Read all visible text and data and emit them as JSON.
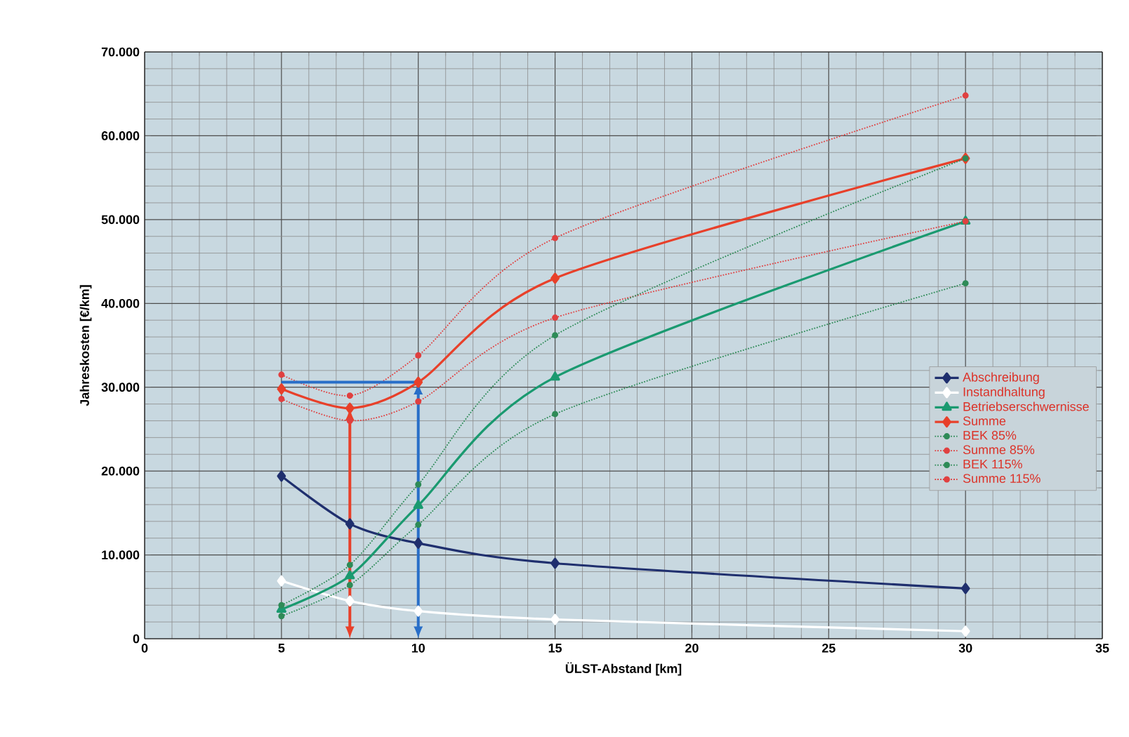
{
  "chart_data": {
    "type": "line",
    "xlabel": "ÜLST-Abstand [km]",
    "ylabel": "Jahreskosten [€/km]",
    "x": [
      5,
      7.5,
      10,
      15,
      30
    ],
    "series": [
      {
        "name": "Abschreibung",
        "color": "#1f2f6e",
        "values": [
          19400,
          13700,
          11400,
          9000,
          6000
        ],
        "marker": "diamond",
        "line_style": "solid"
      },
      {
        "name": "Instandhaltung",
        "color": "#ffffff",
        "values": [
          6900,
          4500,
          3300,
          2300,
          900
        ],
        "marker": "diamond",
        "line_style": "solid"
      },
      {
        "name": "Betriebserschwernisse",
        "color": "#1a9a70",
        "values": [
          3500,
          7500,
          15900,
          31200,
          49800
        ],
        "marker": "triangle",
        "line_style": "solid"
      },
      {
        "name": "Summe",
        "color": "#e8402a",
        "values": [
          29800,
          27500,
          30600,
          43000,
          57300
        ],
        "marker": "diamond",
        "line_style": "solid"
      },
      {
        "name": "BEK 85%",
        "color": "#2e8b57",
        "values": [
          2700,
          6400,
          13600,
          26800,
          42400
        ],
        "marker": "circle",
        "line_style": "dotted"
      },
      {
        "name": "Summe 85%",
        "color": "#e04040",
        "values": [
          28600,
          26000,
          28300,
          38300,
          49800
        ],
        "marker": "circle",
        "line_style": "dotted"
      },
      {
        "name": "BEK 115%",
        "color": "#2e8b57",
        "values": [
          4000,
          8800,
          18400,
          36200,
          57300
        ],
        "marker": "circle",
        "line_style": "dotted"
      },
      {
        "name": "Summe 115%",
        "color": "#e04040",
        "values": [
          31500,
          29000,
          33800,
          47800,
          64800
        ],
        "marker": "circle",
        "line_style": "dotted"
      }
    ],
    "xlim": [
      0,
      35
    ],
    "xticks": [
      0,
      5,
      10,
      15,
      20,
      25,
      30,
      35
    ],
    "ylim": [
      0,
      70000
    ],
    "yticks": [
      {
        "value": 0,
        "label": "0"
      },
      {
        "value": 10000,
        "label": "10.000"
      },
      {
        "value": 20000,
        "label": "20.000"
      },
      {
        "value": 30000,
        "label": "30.000"
      },
      {
        "value": 40000,
        "label": "40.000"
      },
      {
        "value": 50000,
        "label": "50.000"
      },
      {
        "value": 60000,
        "label": "60.000"
      },
      {
        "value": 70000,
        "label": "70.000"
      }
    ],
    "grid": true,
    "legend": "right"
  }
}
